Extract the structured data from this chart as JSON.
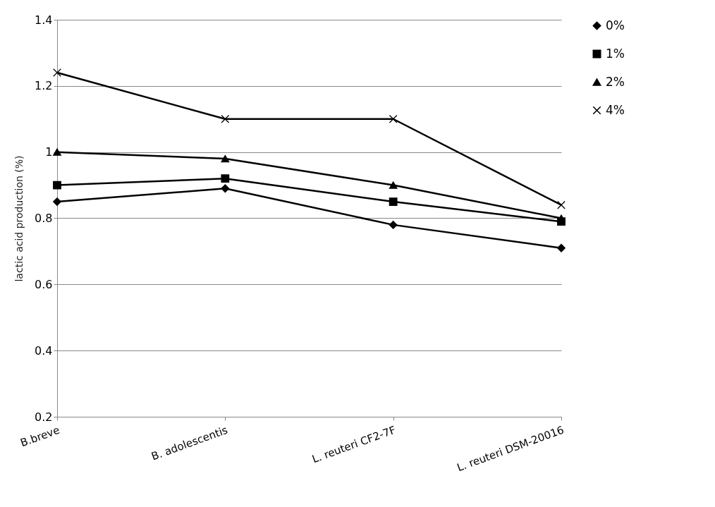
{
  "chart_data": {
    "type": "line",
    "ylabel": "lactic acid production (%)",
    "categories": [
      "B.breve",
      "B. adolescentis",
      "L. reuteri CF2-7F",
      "L. reuteri DSM-20016"
    ],
    "series": [
      {
        "name": "0%",
        "color": "#000000",
        "marker": "diamond",
        "values": [
          0.85,
          0.89,
          0.78,
          0.71
        ]
      },
      {
        "name": "1%",
        "color": "#000000",
        "marker": "square",
        "values": [
          0.9,
          0.92,
          0.85,
          0.79
        ]
      },
      {
        "name": "2%",
        "color": "#000000",
        "marker": "triangle",
        "values": [
          1.0,
          0.98,
          0.9,
          0.8
        ]
      },
      {
        "name": "4%",
        "color": "#000000",
        "marker": "cross",
        "values": [
          1.24,
          1.1,
          1.1,
          0.84
        ]
      }
    ],
    "ylim": [
      0.2,
      1.4
    ],
    "yticks": [
      0.2,
      0.4,
      0.6,
      0.8,
      1,
      1.2,
      1.4
    ],
    "grid": "y",
    "legend": "right"
  }
}
